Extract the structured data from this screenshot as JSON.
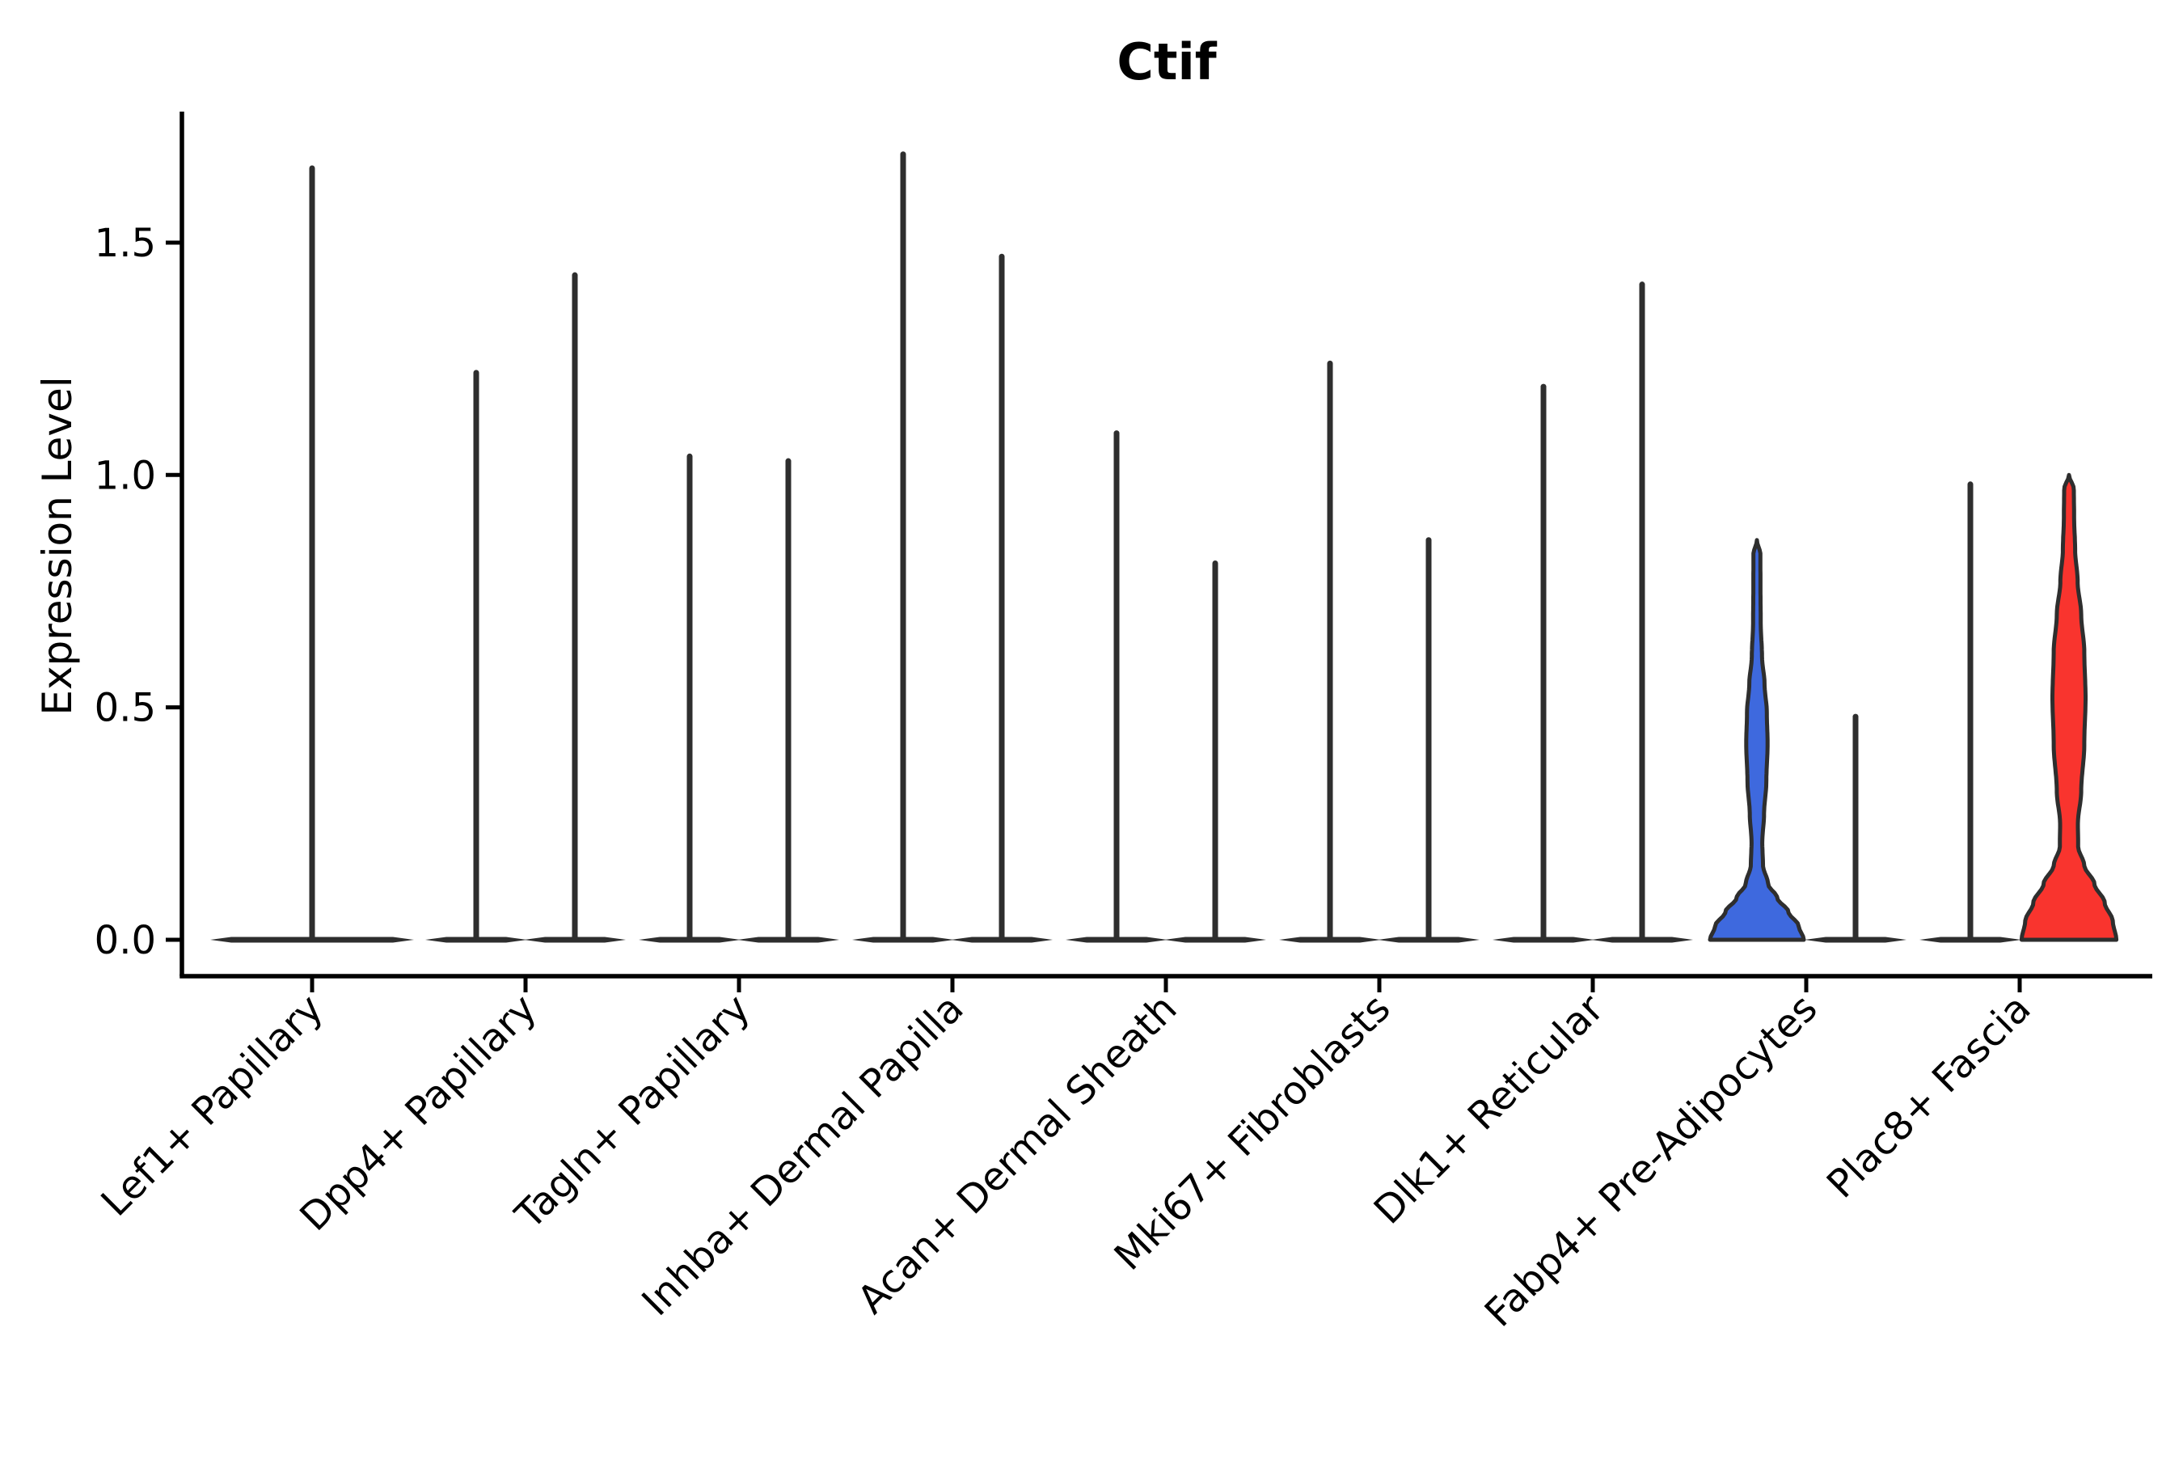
{
  "chart_data": {
    "type": "violin",
    "title": "Ctif",
    "xlabel": "",
    "ylabel": "Expression Level",
    "legend": null,
    "grid": false,
    "y_axis": {
      "ticks": [
        {
          "label": "0.0",
          "value": 0.0
        },
        {
          "label": "0.5",
          "value": 0.5
        },
        {
          "label": "1.0",
          "value": 1.0
        },
        {
          "label": "1.5",
          "value": 1.5
        }
      ],
      "ylim": [
        -0.08,
        1.78
      ]
    },
    "categories": [
      "Lef1+ Papillary",
      "Dpp4+ Papillary",
      "Tagln+ Papillary",
      "Inhba+ Dermal Papilla",
      "Acan+ Dermal Sheath",
      "Mki67+ Fibroblasts",
      "Dlk1+ Reticular",
      "Fabp4+ Pre-Adipocytes",
      "Plac8+ Fascia"
    ],
    "colors": {
      "violin_line": "#2e2e2e",
      "axis": "#000000",
      "highlight_blue": "#3E69DE",
      "highlight_red": "#F9342E"
    },
    "violins": [
      {
        "category": "Lef1+ Papillary",
        "slot": "center",
        "style": "spike",
        "base": "single",
        "max": 1.66
      },
      {
        "category": "Dpp4+ Papillary",
        "slot": "left",
        "style": "spike",
        "base": "pair",
        "max": 1.22
      },
      {
        "category": "Dpp4+ Papillary",
        "slot": "right",
        "style": "spike",
        "base": "pair",
        "max": 1.43
      },
      {
        "category": "Tagln+ Papillary",
        "slot": "left",
        "style": "spike",
        "base": "pair",
        "max": 1.04
      },
      {
        "category": "Tagln+ Papillary",
        "slot": "right",
        "style": "spike",
        "base": "pair",
        "max": 1.03
      },
      {
        "category": "Inhba+ Dermal Papilla",
        "slot": "left",
        "style": "spike",
        "base": "pair",
        "max": 1.69
      },
      {
        "category": "Inhba+ Dermal Papilla",
        "slot": "right",
        "style": "spike",
        "base": "pair",
        "max": 1.47
      },
      {
        "category": "Acan+ Dermal Sheath",
        "slot": "left",
        "style": "spike",
        "base": "pair",
        "max": 1.09
      },
      {
        "category": "Acan+ Dermal Sheath",
        "slot": "right",
        "style": "spike",
        "base": "pair",
        "max": 0.81
      },
      {
        "category": "Mki67+ Fibroblasts",
        "slot": "left",
        "style": "spike",
        "base": "pair",
        "max": 1.24
      },
      {
        "category": "Mki67+ Fibroblasts",
        "slot": "right",
        "style": "spike",
        "base": "pair",
        "max": 0.86
      },
      {
        "category": "Dlk1+ Reticular",
        "slot": "left",
        "style": "spike",
        "base": "pair",
        "max": 1.19
      },
      {
        "category": "Dlk1+ Reticular",
        "slot": "right",
        "style": "spike",
        "base": "pair",
        "max": 1.41
      },
      {
        "category": "Fabp4+ Pre-Adipocytes",
        "slot": "left",
        "style": "density",
        "base": "pair",
        "max": 0.86,
        "fill": "#3E69DE",
        "profile": [
          [
            0.0,
            0.92
          ],
          [
            0.03,
            0.82
          ],
          [
            0.06,
            0.62
          ],
          [
            0.09,
            0.4
          ],
          [
            0.12,
            0.22
          ],
          [
            0.16,
            0.12
          ],
          [
            0.21,
            0.105
          ],
          [
            0.27,
            0.14
          ],
          [
            0.34,
            0.185
          ],
          [
            0.42,
            0.21
          ],
          [
            0.49,
            0.195
          ],
          [
            0.55,
            0.15
          ],
          [
            0.61,
            0.1
          ],
          [
            0.68,
            0.075
          ],
          [
            0.76,
            0.07
          ],
          [
            0.83,
            0.068
          ],
          [
            0.86,
            0.0
          ]
        ]
      },
      {
        "category": "Fabp4+ Pre-Adipocytes",
        "slot": "right",
        "style": "spike",
        "base": "pair",
        "max": 0.48,
        "dots": [
          0.47,
          0.42,
          0.36,
          0.3,
          0.28,
          0.22,
          0.15
        ]
      },
      {
        "category": "Plac8+ Fascia",
        "slot": "left",
        "style": "spike",
        "base": "pair",
        "max": 0.98,
        "dots": [
          0.85,
          0.75,
          0.58,
          0.55,
          0.48,
          0.45,
          0.34,
          0.31,
          0.28,
          0.25
        ]
      },
      {
        "category": "Plac8+ Fascia",
        "slot": "right",
        "style": "density",
        "base": "pair",
        "max": 1.0,
        "fill": "#F9342E",
        "profile": [
          [
            0.0,
            0.93
          ],
          [
            0.04,
            0.86
          ],
          [
            0.08,
            0.7
          ],
          [
            0.12,
            0.5
          ],
          [
            0.16,
            0.3
          ],
          [
            0.2,
            0.18
          ],
          [
            0.25,
            0.175
          ],
          [
            0.32,
            0.24
          ],
          [
            0.42,
            0.3
          ],
          [
            0.52,
            0.325
          ],
          [
            0.62,
            0.3
          ],
          [
            0.7,
            0.24
          ],
          [
            0.77,
            0.17
          ],
          [
            0.84,
            0.12
          ],
          [
            0.91,
            0.1
          ],
          [
            0.97,
            0.095
          ],
          [
            1.0,
            0.0
          ]
        ]
      }
    ]
  }
}
